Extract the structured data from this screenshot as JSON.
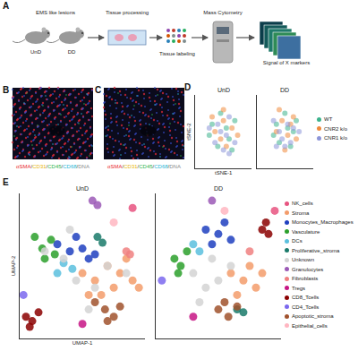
{
  "panels": [
    {
      "label": "A",
      "type": "workflow",
      "steps": [
        "EMS like lesions",
        "Tissue processing",
        "Tissue labeling",
        "Mass Cytometry",
        "Signal of X markers"
      ],
      "groups": [
        "UnD",
        "DD"
      ]
    },
    {
      "label": "B",
      "type": "image",
      "stain_separator": "/",
      "stains": [
        {
          "name": "αSMA",
          "color": "#e8262b"
        },
        {
          "name": "CD31",
          "color": "#e8b400"
        },
        {
          "name": "CD45",
          "color": "#2fb34a"
        },
        {
          "name": "CD68",
          "color": "#27b5d6"
        },
        {
          "name": "DNA",
          "color": "#8a8a8a"
        }
      ]
    },
    {
      "label": "C",
      "type": "image",
      "stain_separator": "/",
      "stains": [
        {
          "name": "αSMA",
          "color": "#e8262b"
        },
        {
          "name": "CD31",
          "color": "#e8b400"
        },
        {
          "name": "CD45",
          "color": "#2fb34a"
        },
        {
          "name": "CD68",
          "color": "#27b5d6"
        },
        {
          "name": "DNA",
          "color": "#8a8a8a"
        }
      ]
    }
  ],
  "chart_data": [
    {
      "panel": "D",
      "type": "scatter",
      "x_label": "tSNE-1",
      "y_label": "tSNE-2",
      "tick_labels": false,
      "grid": false,
      "legend": "right",
      "marker": "circle",
      "xlim": [
        0,
        100
      ],
      "ylim": [
        0,
        100
      ],
      "subplots": [
        {
          "title": "UnD",
          "series": [
            {
              "name": "WT",
              "color": "#3cb38c",
              "x": [
                30,
                45,
                60,
                70,
                40,
                55,
                25,
                65
              ],
              "y": [
                60,
                75,
                40,
                65,
                30,
                55,
                45,
                25
              ]
            },
            {
              "name": "CNR2 k/o",
              "color": "#f08a3c",
              "x": [
                35,
                50,
                65,
                45,
                55,
                30,
                75,
                50
              ],
              "y": [
                50,
                65,
                55,
                40,
                30,
                70,
                45,
                80
              ]
            },
            {
              "name": "CNR1 k/o",
              "color": "#8d95d8",
              "x": [
                40,
                55,
                60,
                35,
                70,
                45,
                25,
                60,
                50
              ],
              "y": [
                60,
                45,
                70,
                35,
                35,
                50,
                55,
                20,
                25
              ]
            }
          ]
        },
        {
          "title": "DD",
          "series": [
            {
              "name": "WT",
              "color": "#3cb38c",
              "x": [
                35,
                50,
                65,
                40,
                60,
                30,
                70,
                55
              ],
              "y": [
                60,
                75,
                50,
                35,
                30,
                45,
                65,
                55
              ]
            },
            {
              "name": "CNR2 k/o",
              "color": "#f08a3c",
              "x": [
                45,
                55,
                70,
                35,
                50,
                65,
                40,
                60
              ],
              "y": [
                65,
                45,
                40,
                50,
                25,
                70,
                80,
                60
              ]
            },
            {
              "name": "CNR1 k/o",
              "color": "#8d95d8",
              "x": [
                40,
                55,
                60,
                30,
                45,
                65,
                50,
                75,
                35
              ],
              "y": [
                50,
                60,
                35,
                65,
                40,
                55,
                30,
                50,
                30
              ]
            }
          ]
        }
      ]
    },
    {
      "panel": "E",
      "type": "scatter",
      "x_label": "UMAP-1",
      "y_label": "UMAP-2",
      "tick_labels": false,
      "grid": false,
      "legend": "right",
      "marker": "circle",
      "xlim": [
        0,
        100
      ],
      "ylim": [
        0,
        100
      ],
      "subplots": [
        {
          "title": "UnD",
          "series": [
            {
              "name": "NK_cells",
              "color": "#e75480",
              "x": [
                90
              ],
              "y": [
                90
              ]
            },
            {
              "name": "Stroma",
              "color": "#f39c6b",
              "x": [
                50,
                60,
                70,
                80,
                90,
                65,
                75,
                85,
                55,
                95
              ],
              "y": [
                45,
                40,
                50,
                45,
                40,
                30,
                35,
                55,
                30,
                35
              ]
            },
            {
              "name": "Monocytes_Macrophages",
              "color": "#1f3fbf",
              "x": [
                30,
                40,
                50,
                55,
                45,
                60
              ],
              "y": [
                65,
                60,
                62,
                55,
                70,
                58
              ]
            },
            {
              "name": "Vasculature",
              "color": "#2ca02c",
              "x": [
                12,
                18,
                25,
                20,
                28
              ],
              "y": [
                70,
                62,
                68,
                55,
                58
              ]
            },
            {
              "name": "DCs",
              "color": "#5bc0de",
              "x": [
                35,
                42,
                30
              ],
              "y": [
                52,
                48,
                45
              ]
            },
            {
              "name": "Proliferative_stroma",
              "color": "#1a7a6a",
              "x": [
                62,
                66
              ],
              "y": [
                70,
                66
              ]
            },
            {
              "name": "Unknown",
              "color": "#d3d3d3",
              "x": [
                20,
                35,
                45,
                60,
                70,
                85,
                55,
                40
              ],
              "y": [
                60,
                55,
                40,
                35,
                50,
                45,
                20,
                75
              ]
            },
            {
              "name": "Granulocytes",
              "color": "#9b59b6",
              "x": [
                58,
                62
              ],
              "y": [
                95,
                92
              ]
            },
            {
              "name": "Fibroblasts",
              "color": "#f08080",
              "x": [
                85,
                88
              ],
              "y": [
                60,
                58
              ]
            },
            {
              "name": "Tregs",
              "color": "#c71585",
              "x": [
                50
              ],
              "y": [
                10
              ]
            },
            {
              "name": "CD8_Tcells",
              "color": "#8b0000",
              "x": [
                5,
                10,
                15,
                8
              ],
              "y": [
                15,
                12,
                18,
                8
              ]
            },
            {
              "name": "CD4_Tcells",
              "color": "#7b68ee",
              "x": [
                3
              ],
              "y": [
                30
              ]
            },
            {
              "name": "Apoptotic_stroma",
              "color": "#a0522d",
              "x": [
                60,
                68,
                75,
                70,
                80
              ],
              "y": [
                25,
                20,
                15,
                12,
                22
              ]
            },
            {
              "name": "Epithelial_cells",
              "color": "#ffb6c1",
              "x": [
                75
              ],
              "y": [
                80
              ]
            }
          ]
        },
        {
          "title": "DD",
          "series": [
            {
              "name": "NK_cells",
              "color": "#e75480",
              "x": [
                95
              ],
              "y": [
                88
              ]
            },
            {
              "name": "Stroma",
              "color": "#f39c6b",
              "x": [
                60,
                70,
                80,
                75,
                85,
                65
              ],
              "y": [
                45,
                40,
                35,
                50,
                45,
                30
              ]
            },
            {
              "name": "Monocytes_Macrophages",
              "color": "#1f3fbf",
              "x": [
                40,
                50,
                60,
                55,
                45
              ],
              "y": [
                75,
                72,
                68,
                80,
                65
              ]
            },
            {
              "name": "Vasculature",
              "color": "#2ca02c",
              "x": [
                15,
                20,
                25,
                18
              ],
              "y": [
                55,
                50,
                60,
                45
              ]
            },
            {
              "name": "DCs",
              "color": "#5bc0de",
              "x": [
                30,
                35
              ],
              "y": [
                65,
                60
              ]
            },
            {
              "name": "Proliferative_stroma",
              "color": "#1a7a6a",
              "x": [
                65,
                70
              ],
              "y": [
                20,
                18
              ]
            },
            {
              "name": "Unknown",
              "color": "#d3d3d3",
              "x": [
                30,
                40,
                50,
                35,
                45,
                60
              ],
              "y": [
                45,
                35,
                40,
                25,
                55,
                50
              ]
            },
            {
              "name": "Granulocytes",
              "color": "#9b59b6",
              "x": [
                45
              ],
              "y": [
                95
              ]
            },
            {
              "name": "Fibroblasts",
              "color": "#f08080",
              "x": [
                75
              ],
              "y": [
                60
              ]
            },
            {
              "name": "Tregs",
              "color": "#c71585",
              "x": [
                30
              ],
              "y": [
                15
              ]
            },
            {
              "name": "CD8_Tcells",
              "color": "#8b0000",
              "x": [
                85,
                90,
                88
              ],
              "y": [
                75,
                72,
                80
              ]
            },
            {
              "name": "CD4_Tcells",
              "color": "#7b68ee",
              "x": [
                5
              ],
              "y": [
                40
              ]
            },
            {
              "name": "Apoptotic_stroma",
              "color": "#a0522d",
              "x": [
                50,
                58,
                65,
                55
              ],
              "y": [
                20,
                15,
                22,
                25
              ]
            },
            {
              "name": "Epithelial_cells",
              "color": "#ffb6c1",
              "x": [
                55
              ],
              "y": [
                88
              ]
            }
          ]
        }
      ]
    }
  ]
}
